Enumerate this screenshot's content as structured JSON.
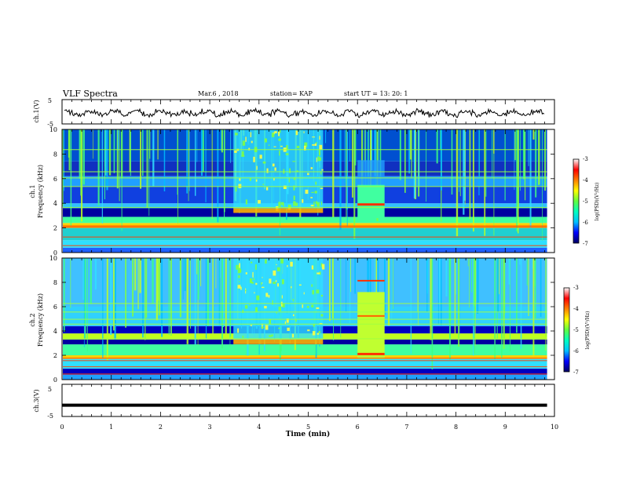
{
  "header": {
    "title": "VLF Spectra",
    "date": "Mar.6 , 2018",
    "station": "station= KAP",
    "start": "start UT = 13: 20: 1"
  },
  "chart_data": [
    {
      "type": "line",
      "name": "ch1-waveform",
      "ylabel": "ch.1(V)",
      "ylim": [
        -5,
        5
      ],
      "yticks": [
        "5",
        "-5"
      ],
      "xlim": [
        0,
        10
      ],
      "note_values": "continuous noisy voltage waveform around ~ -0.5 V, amplitude ~±1.5 V"
    },
    {
      "type": "heatmap",
      "name": "ch1-spectrogram",
      "ylabel_line1": "ch.1",
      "ylabel_line2": "Frequency (kHz)",
      "ylim": [
        0,
        10
      ],
      "yticks": [
        "0",
        "2",
        "4",
        "6",
        "8",
        "10"
      ],
      "xlim": [
        0,
        9.85
      ],
      "colorbar": {
        "label": "log(PSD)(V²/Hz)",
        "range": [
          -7,
          -3
        ],
        "ticks": [
          "-3",
          "-4",
          "-5",
          "-6",
          "-7"
        ]
      }
    },
    {
      "type": "heatmap",
      "name": "ch2-spectrogram",
      "ylabel_line1": "ch.2",
      "ylabel_line2": "Frequency (kHz)",
      "ylim": [
        0,
        10
      ],
      "yticks": [
        "0",
        "2",
        "4",
        "6",
        "8",
        "10"
      ],
      "xlim": [
        0,
        9.85
      ],
      "colorbar": {
        "label": "log(PSD)(V²/Hz)",
        "range": [
          -7,
          -3
        ],
        "ticks": [
          "-3",
          "-4",
          "-5",
          "-6",
          "-7"
        ]
      }
    },
    {
      "type": "line",
      "name": "ch3-waveform",
      "ylabel": "ch.3(V)",
      "ylim": [
        -5,
        5
      ],
      "yticks": [
        "5",
        "-5"
      ],
      "xlim": [
        0,
        10
      ],
      "series": [
        {
          "x": [
            0,
            9.85
          ],
          "y": [
            -1.5,
            -1.5
          ]
        }
      ]
    }
  ],
  "xaxis": {
    "label": "Time (min)",
    "ticks": [
      "0",
      "1",
      "2",
      "3",
      "4",
      "5",
      "6",
      "7",
      "8",
      "9",
      "10"
    ],
    "range": [
      0,
      10
    ]
  },
  "colors": {
    "cmap": [
      "#000070",
      "#0000ff",
      "#00a0ff",
      "#00ffff",
      "#40ff80",
      "#c0ff00",
      "#ffff00",
      "#ff8000",
      "#ff0000",
      "#ffffff"
    ]
  }
}
